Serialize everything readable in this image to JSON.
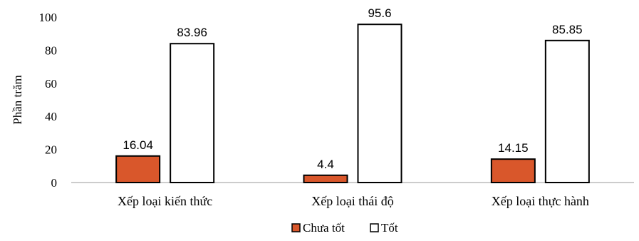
{
  "chart_data": {
    "type": "bar",
    "categories": [
      "Xếp loại kiến thức",
      "Xếp loại thái độ",
      "Xếp loại thực hành"
    ],
    "series": [
      {
        "name": "Chưa tốt",
        "values": [
          16.04,
          4.4,
          14.15
        ],
        "color": "#D9572B"
      },
      {
        "name": "Tốt",
        "values": [
          83.96,
          95.6,
          85.85
        ],
        "color": "#FFFFFF"
      }
    ],
    "ylabel": "Phần trăm",
    "ylim": [
      0,
      100
    ],
    "yticks": [
      0,
      20,
      40,
      60,
      80,
      100
    ],
    "data_labels": [
      [
        "16.04",
        "4.4",
        "14.15"
      ],
      [
        "83.96",
        "95.6",
        "85.85"
      ]
    ],
    "legend_position": "bottom",
    "grid": false
  }
}
